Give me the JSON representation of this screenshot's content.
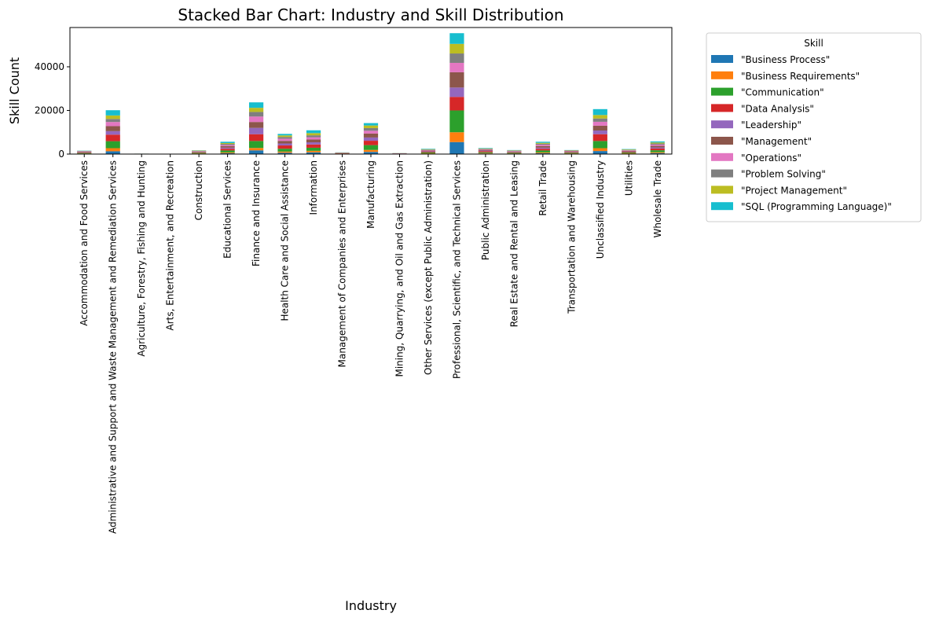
{
  "chart_data": {
    "type": "bar",
    "stacked": true,
    "title": "Stacked Bar Chart: Industry and Skill Distribution",
    "xlabel": "Industry",
    "ylabel": "Skill Count",
    "ylim": [
      0,
      58000
    ],
    "yticks": [
      0,
      20000,
      40000
    ],
    "legend": {
      "title": "Skill",
      "placement": "outside-right"
    },
    "categories": [
      "Accommodation and Food Services",
      "Administrative and Support and Waste Management and Remediation Services",
      "Agriculture, Forestry, Fishing and Hunting",
      "Arts, Entertainment, and Recreation",
      "Construction",
      "Educational Services",
      "Finance and Insurance",
      "Health Care and Social Assistance",
      "Information",
      "Management of Companies and Enterprises",
      "Manufacturing",
      "Mining, Quarrying, and Oil and Gas Extraction",
      "Other Services (except Public Administration)",
      "Professional, Scientific, and Technical Services",
      "Public Administration",
      "Real Estate and Rental and Leasing",
      "Retail Trade",
      "Transportation and Warehousing",
      "Unclassified Industry",
      "Utilities",
      "Wholesale Trade"
    ],
    "series": [
      {
        "name": "\"Business Process\"",
        "color": "#1f77b4",
        "values": [
          150,
          1300,
          30,
          20,
          150,
          400,
          1700,
          600,
          800,
          80,
          1000,
          50,
          200,
          5500,
          250,
          150,
          400,
          150,
          1400,
          200,
          450
        ]
      },
      {
        "name": "\"Business Requirements\"",
        "color": "#ff7f0e",
        "values": [
          100,
          1400,
          20,
          10,
          150,
          350,
          1100,
          550,
          700,
          60,
          900,
          40,
          150,
          4500,
          200,
          120,
          350,
          150,
          1300,
          180,
          400
        ]
      },
      {
        "name": "\"Communication\"",
        "color": "#2ca02c",
        "values": [
          250,
          3200,
          40,
          30,
          300,
          900,
          3200,
          1300,
          1400,
          120,
          2200,
          70,
          400,
          10000,
          400,
          300,
          900,
          300,
          3300,
          350,
          900
        ]
      },
      {
        "name": "\"Data Analysis\"",
        "color": "#d62728",
        "values": [
          200,
          3000,
          20,
          20,
          250,
          800,
          3100,
          1500,
          1500,
          100,
          2000,
          60,
          300,
          6200,
          500,
          250,
          800,
          250,
          3100,
          300,
          800
        ]
      },
      {
        "name": "\"Leadership\"",
        "color": "#9467bd",
        "values": [
          150,
          1600,
          20,
          10,
          150,
          500,
          2900,
          900,
          1000,
          70,
          1500,
          50,
          250,
          4300,
          250,
          150,
          500,
          150,
          1700,
          200,
          500
        ]
      },
      {
        "name": "\"Management\"",
        "color": "#8c564b",
        "values": [
          200,
          2300,
          20,
          20,
          200,
          700,
          2700,
          1200,
          1300,
          100,
          1800,
          60,
          300,
          7000,
          350,
          250,
          750,
          250,
          2200,
          300,
          700
        ]
      },
      {
        "name": "\"Operations\"",
        "color": "#e377c2",
        "values": [
          200,
          1900,
          20,
          20,
          150,
          500,
          2500,
          1000,
          1000,
          80,
          1300,
          40,
          250,
          4300,
          250,
          200,
          600,
          200,
          1800,
          200,
          600
        ]
      },
      {
        "name": "\"Problem Solving\"",
        "color": "#7f7f7f",
        "values": [
          150,
          1400,
          20,
          20,
          150,
          500,
          2100,
          800,
          900,
          70,
          1200,
          40,
          200,
          4300,
          200,
          150,
          450,
          150,
          1500,
          200,
          500
        ]
      },
      {
        "name": "\"Project Management\"",
        "color": "#bcbd22",
        "values": [
          100,
          1600,
          10,
          10,
          150,
          400,
          1900,
          700,
          1000,
          60,
          1200,
          40,
          200,
          4400,
          200,
          150,
          400,
          150,
          1600,
          200,
          450
        ]
      },
      {
        "name": "\"SQL (Programming Language)\"",
        "color": "#17becf",
        "values": [
          100,
          2400,
          10,
          10,
          100,
          600,
          2500,
          700,
          1300,
          60,
          1100,
          30,
          200,
          4900,
          200,
          130,
          500,
          100,
          2700,
          170,
          500
        ]
      }
    ]
  }
}
